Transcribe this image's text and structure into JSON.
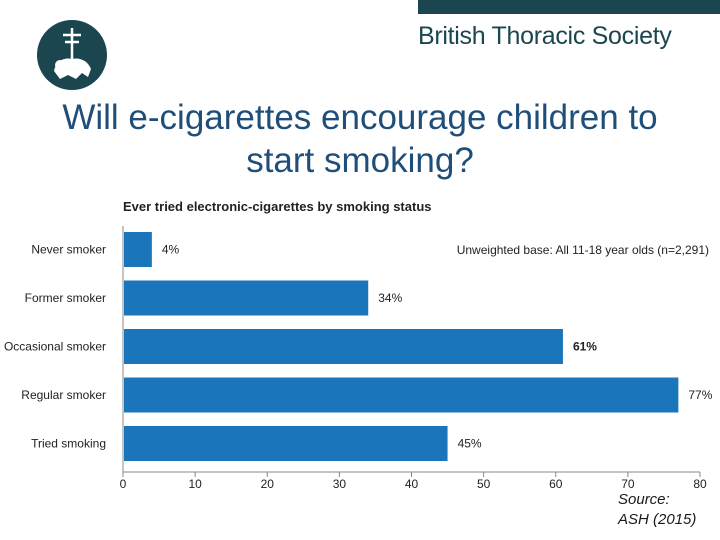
{
  "header": {
    "organisation": "British Thoracic Society",
    "logo_icon": "lion-crest-icon",
    "accent_color": "#1b4650"
  },
  "slide": {
    "title_line1": "Will e-cigarettes encourage children to",
    "title_line2": "start smoking?"
  },
  "source": {
    "line1": "Source:",
    "line2": "ASH (2015)"
  },
  "chart_data": {
    "type": "bar",
    "orientation": "horizontal",
    "title": "Ever tried electronic-cigarettes by smoking status",
    "annotation": "Unweighted base: All 11-18 year olds (n=2,291)",
    "categories": [
      "Never smoker",
      "Former smoker",
      "Occasional smoker",
      "Regular smoker",
      "Tried smoking"
    ],
    "values": [
      4,
      34,
      61,
      77,
      45
    ],
    "value_labels": [
      "4%",
      "34%",
      "61%",
      "77%",
      "45%"
    ],
    "bold_labels": [
      false,
      false,
      true,
      false,
      false
    ],
    "xlim": [
      0,
      80
    ],
    "xticks": [
      "0",
      "10",
      "20",
      "30",
      "40",
      "50",
      "60",
      "70",
      "80"
    ],
    "bar_color": "#1b75bb",
    "grid": false,
    "legend": "none"
  }
}
